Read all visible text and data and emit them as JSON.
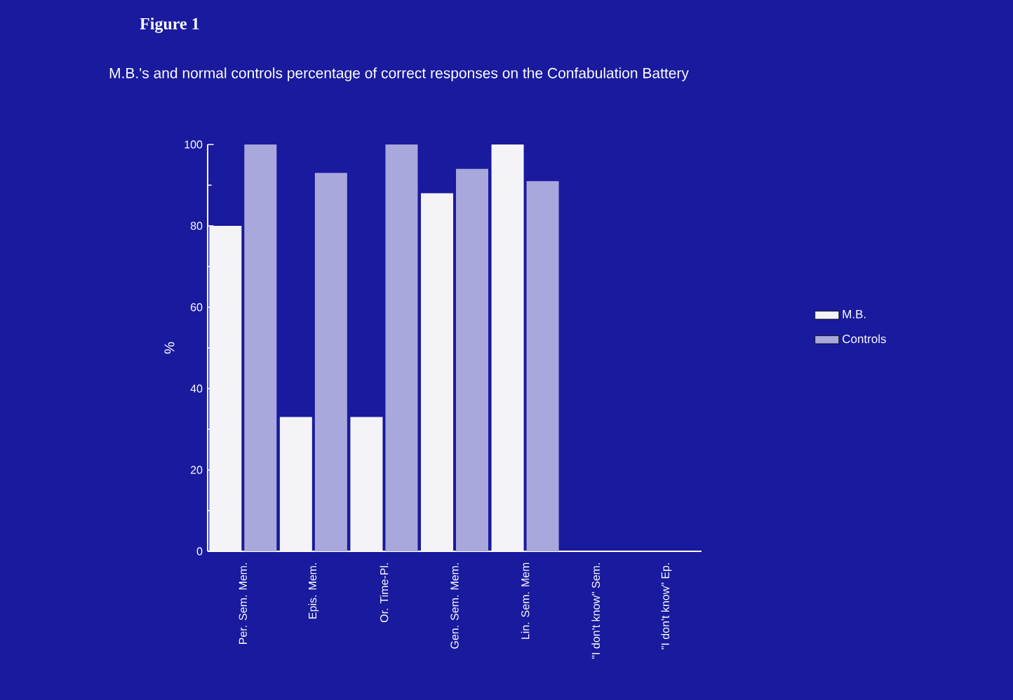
{
  "chart_data": {
    "type": "bar",
    "title": "Figure 1",
    "subtitle": "M.B.'s and normal controls percentage of correct responses on the Confabulation Battery",
    "ylabel": "%",
    "categories": [
      "Per. Sem. Mem.",
      "Epis. Mem.",
      "Or. Time-Pl.",
      "Gen. Sem. Mem.",
      "Lin. Sem. Mem",
      "\"I don't know\" Sem.",
      "\"I don't know\" Ep."
    ],
    "series": [
      {
        "name": "M.B.",
        "color": "#f4f4f8",
        "values": [
          80,
          33,
          33,
          88,
          100,
          0,
          0
        ]
      },
      {
        "name": "Controls",
        "color": "#a8a8dc",
        "values": [
          100,
          93,
          100,
          94,
          91,
          0,
          0
        ]
      }
    ],
    "ylim": [
      0,
      100
    ],
    "yticks": [
      0,
      20,
      40,
      60,
      80,
      100
    ],
    "legend": "right",
    "grid": false
  }
}
